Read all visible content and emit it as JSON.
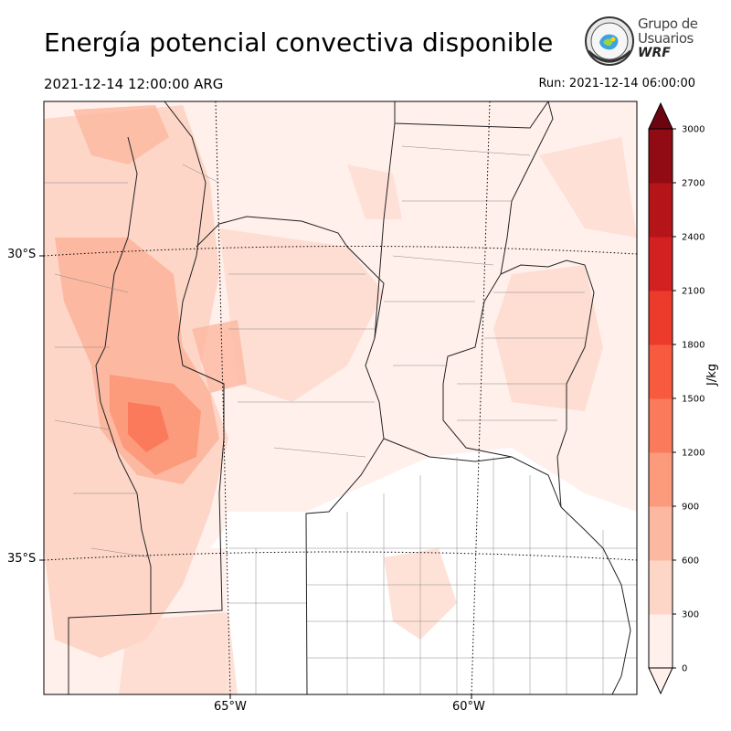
{
  "header": {
    "title": "Energía potencial convectiva disponible",
    "valid_time": "2021-12-14 12:00:00 ARG",
    "run_time": "Run: 2021-12-14 06:00:00"
  },
  "logo": {
    "line1": "Grupo de",
    "line2": "Usuarios",
    "line3": "WRF"
  },
  "map": {
    "lat_labels": [
      "30°S",
      "35°S"
    ],
    "lon_labels": [
      "65°W",
      "60°W"
    ]
  },
  "colorbar": {
    "label": "J/kg",
    "ticks": [
      "0",
      "300",
      "600",
      "900",
      "1200",
      "1500",
      "1800",
      "2100",
      "2400",
      "2700",
      "3000"
    ],
    "colors": [
      "#fff0eb",
      "#fdd6c8",
      "#fcb8a0",
      "#fc9a7c",
      "#fb7a5c",
      "#f75a3e",
      "#ec3b2b",
      "#d32020",
      "#b51419",
      "#900b14",
      "#6d0510"
    ]
  }
}
